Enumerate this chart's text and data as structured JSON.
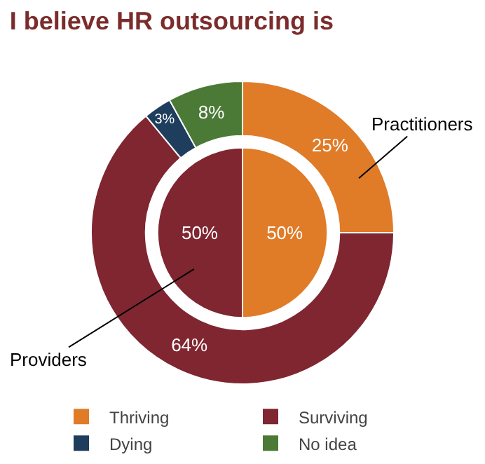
{
  "chart_data": {
    "type": "donut",
    "title": "I believe HR outsourcing is",
    "categories": [
      "Thriving",
      "Surviving",
      "Dying",
      "No idea"
    ],
    "colors": [
      "#e07b28",
      "#7f2630",
      "#1f3e5e",
      "#4a7a35"
    ],
    "series": [
      {
        "name": "Practitioners",
        "values": [
          25,
          64,
          3,
          8
        ],
        "value_labels": [
          "25%",
          "64%",
          "3%",
          "8%"
        ]
      },
      {
        "name": "Providers",
        "type": "pie",
        "values": [
          50,
          50,
          null,
          null
        ],
        "value_labels": [
          "50%",
          "50%",
          null,
          null
        ]
      }
    ],
    "legend": "bottom"
  }
}
